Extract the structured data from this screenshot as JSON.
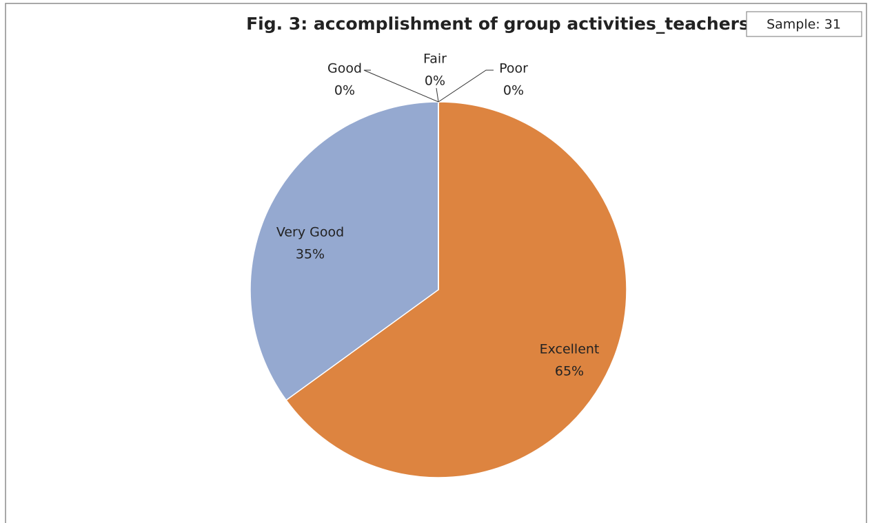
{
  "chart_data": {
    "type": "pie",
    "title": "Fig. 3: accomplishment of group activities_teachers",
    "annotation": "Sample: 31",
    "categories": [
      "Excellent",
      "Very Good",
      "Good",
      "Fair",
      "Poor"
    ],
    "values": [
      65,
      35,
      0,
      0,
      0
    ],
    "value_labels": [
      "65%",
      "35%",
      "0%",
      "0%",
      "0%"
    ],
    "colors": [
      "#dd8440",
      "#95a9d0",
      "#a5a5a5",
      "#ffc000",
      "#5b9bd5"
    ]
  }
}
